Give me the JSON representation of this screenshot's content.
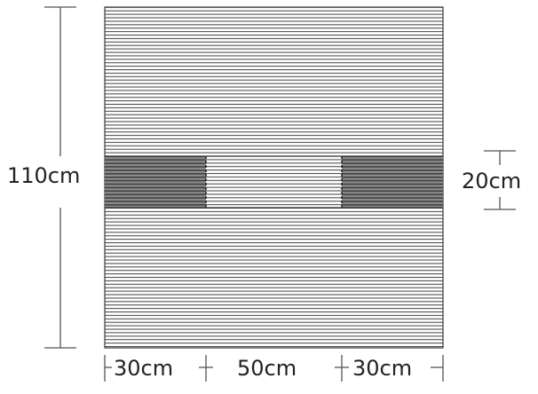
{
  "labels": {
    "total_height": "110cm",
    "stripe_height": "20cm",
    "left_width": "30cm",
    "middle_width": "50cm",
    "right_width": "30cm"
  },
  "colors": {
    "line": "#4a4a4a",
    "dark_panel": "#6f6f6f",
    "dimension_line": "#555555",
    "text": "#222222"
  }
}
